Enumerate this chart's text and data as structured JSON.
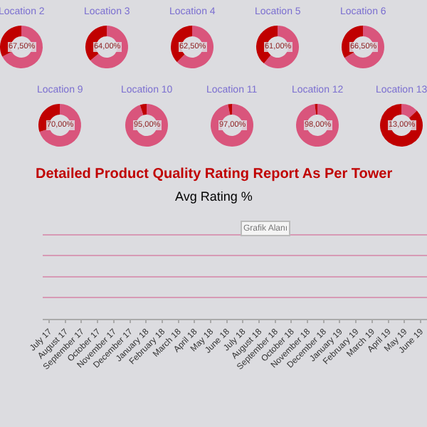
{
  "chart_data": [
    {
      "type": "donut",
      "title": "Location 2",
      "categories": [
        null,
        null
      ],
      "values": [
        67.5,
        32.5
      ],
      "colors": [
        "#d9557c",
        "#c00000"
      ],
      "annotations": [
        "67,50%"
      ]
    },
    {
      "type": "donut",
      "title": "Location 3",
      "categories": [
        null,
        null
      ],
      "values": [
        64,
        36
      ],
      "colors": [
        "#d9557c",
        "#c00000"
      ],
      "annotations": [
        "64,00%"
      ]
    },
    {
      "type": "donut",
      "title": "Location 4",
      "categories": [
        null,
        null
      ],
      "values": [
        62.5,
        37.5
      ],
      "colors": [
        "#d9557c",
        "#c00000"
      ],
      "annotations": [
        "62,50%"
      ]
    },
    {
      "type": "donut",
      "title": "Location 5",
      "categories": [
        null,
        null
      ],
      "values": [
        61,
        39
      ],
      "colors": [
        "#d9557c",
        "#c00000"
      ],
      "annotations": [
        "61,00%"
      ]
    },
    {
      "type": "donut",
      "title": "Location 6",
      "categories": [
        null,
        null
      ],
      "values": [
        66.5,
        33.5
      ],
      "colors": [
        "#d9557c",
        "#c00000"
      ],
      "annotations": [
        "66,50%"
      ]
    },
    {
      "type": "donut",
      "title": "Location 9",
      "categories": [
        null,
        null
      ],
      "values": [
        70,
        30
      ],
      "colors": [
        "#d9557c",
        "#c00000"
      ],
      "annotations": [
        "70,00%"
      ]
    },
    {
      "type": "donut",
      "title": "Location 10",
      "categories": [
        null,
        null
      ],
      "values": [
        95,
        5
      ],
      "colors": [
        "#d9557c",
        "#c00000"
      ],
      "annotations": [
        "95,00%"
      ]
    },
    {
      "type": "donut",
      "title": "Location 11",
      "categories": [
        null,
        null
      ],
      "values": [
        97,
        3
      ],
      "colors": [
        "#d9557c",
        "#c00000"
      ],
      "annotations": [
        "97,00%"
      ]
    },
    {
      "type": "donut",
      "title": "Location 12",
      "categories": [
        null,
        null
      ],
      "values": [
        98,
        2
      ],
      "colors": [
        "#d9557c",
        "#c00000"
      ],
      "annotations": [
        "98,00%"
      ]
    },
    {
      "type": "donut",
      "title": "Location 13",
      "categories": [
        null,
        null
      ],
      "values": [
        13,
        87
      ],
      "colors": [
        "#d9557c",
        "#c00000"
      ],
      "annotations": [
        "13,00%"
      ]
    },
    {
      "type": "other",
      "title": "Detailed Product Quality Rating Report As Per Tower",
      "subtitle": "Avg Rating %",
      "annotations": [
        "Grafik Alanı"
      ],
      "categories": [
        "July 17",
        "August 17",
        "September 17",
        "October 17",
        "November 17",
        "December 17",
        "January 18",
        "February 18",
        "March 18",
        "April 18",
        "May 18",
        "June 18",
        "July 18",
        "August 18",
        "September 18",
        "October 18",
        "November 18",
        "December 18",
        "January 19",
        "February 19",
        "March 19",
        "April 19",
        "May 19",
        "June 19"
      ]
    }
  ]
}
